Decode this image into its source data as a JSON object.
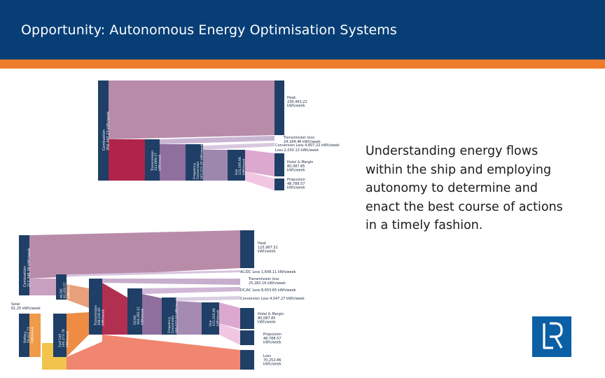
{
  "header": {
    "title": "Opportunity: Autonomous Energy Optimisation Systems"
  },
  "body_text": "Understanding energy flows within the ship and employing autonomy to determine and enact the best course of actions in a timely fashion.",
  "colors": {
    "header_bg": "#083e76",
    "accent": "#ee7d2b",
    "node_navy": "#1f3f66",
    "logo": "#0b5fa5"
  },
  "logo": {
    "text": "LR"
  },
  "diagram1": {
    "nodes": {
      "combustion": "Combustion\n356,447.23 kWh/week",
      "transmission": "Transmission\n311,669.37\nkWh/week",
      "frequency": "Frequency\nConversion\n241,221.20 kWh/week",
      "use": "Use\n131,595.66\nkWh/week"
    },
    "outputs": {
      "heat": "Heat:\n236,463.22\nkWh/week",
      "transmission_loss": "Transmission loss:\n24,184.46 kWh/week",
      "conversion_loss": "Conversion Loss 4,607.22 kWh/week",
      "loss": "Loss 2,030.13 kWh/week",
      "hotel": "Hotel & Margin\n80,087.85\nkWh/week",
      "propulsion": "Propulsion\n48,788.57\nkWh/week"
    }
  },
  "diagram2": {
    "nodes": {
      "combustion": "Combustion\n217,348.38 kWh/week",
      "acdc": "AC/DC\n82,450.57\nkWh/week",
      "solar": "Solar\n61.25 kWh/week",
      "fuel_cell": "Fuel Cell\n190,273.78\nkWh/week",
      "battery": "Battery\n59,422.73\nkWh/week",
      "transmission": "Transmission\n168,530.80\nkWh/week",
      "dcac": "DC/AC\n164,282.12\nkWh/week",
      "frequency": "Frequency\nConversion\n155,577.01 kWh/week",
      "use": "Use\n131,505.66\nkWh/week"
    },
    "outputs": {
      "heat": "Heat\n125,967.31\nkWh/week",
      "acdc_loss": "AC/DC Loss 1,608.11 kWh/week",
      "transmission_loss": "Transmission loss\n25,282.16 kWh/week",
      "dcac_loss": "DC/AC Loss 8,653.65 kWh/week",
      "conversion_loss": "Conversion Loss 4,047.27 kWh/week",
      "hotel": "Hotel & Margin\n80,087.85\nkWh/week",
      "propulsion": "Propulsion\n48,788.57\nkWh/week",
      "loss": "Loss\n70,252.86\nkWh/week"
    }
  }
}
